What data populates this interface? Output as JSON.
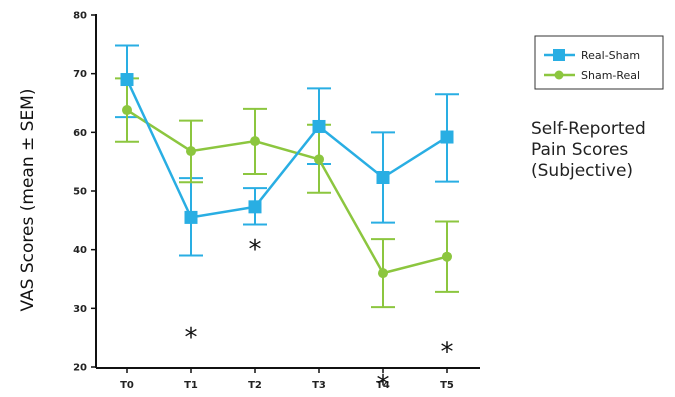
{
  "chart_data": {
    "type": "line",
    "categories": [
      "T0",
      "T1",
      "T2",
      "T3",
      "T4",
      "T5"
    ],
    "ylabel": "VAS Scores (mean ± SEM)",
    "ylim": [
      20,
      80
    ],
    "yticks": [
      20,
      30,
      40,
      50,
      60,
      70,
      80
    ],
    "grid": false,
    "legend_position": "top-right",
    "series": [
      {
        "name": "Real-Sham",
        "color": "#29aee3",
        "marker": "square",
        "values": [
          69,
          45.5,
          47.3,
          61,
          52.3,
          59.2
        ],
        "err_upper": [
          74.8,
          52.2,
          50.5,
          67.5,
          60,
          66.5
        ],
        "err_lower": [
          62.6,
          39,
          44.3,
          54.6,
          44.6,
          51.6
        ]
      },
      {
        "name": "Sham-Real",
        "color": "#8cc63f",
        "marker": "circle",
        "values": [
          63.8,
          56.8,
          58.5,
          55.4,
          36,
          38.8
        ],
        "err_upper": [
          69.2,
          62,
          64,
          61.3,
          41.8,
          44.8
        ],
        "err_lower": [
          58.4,
          51.5,
          52.9,
          49.7,
          30.2,
          32.8
        ]
      }
    ],
    "annotations": [
      {
        "text": "*",
        "category": "T1",
        "y": 26.5
      },
      {
        "text": "*",
        "category": "T2",
        "y": 41.5
      },
      {
        "text": "*",
        "category": "T4",
        "y": 18.5
      },
      {
        "text": "*",
        "category": "T5",
        "y": 24
      }
    ]
  },
  "side_note": {
    "line1": "Self-Reported",
    "line2": "Pain Scores",
    "line3": "(Subjective)"
  }
}
